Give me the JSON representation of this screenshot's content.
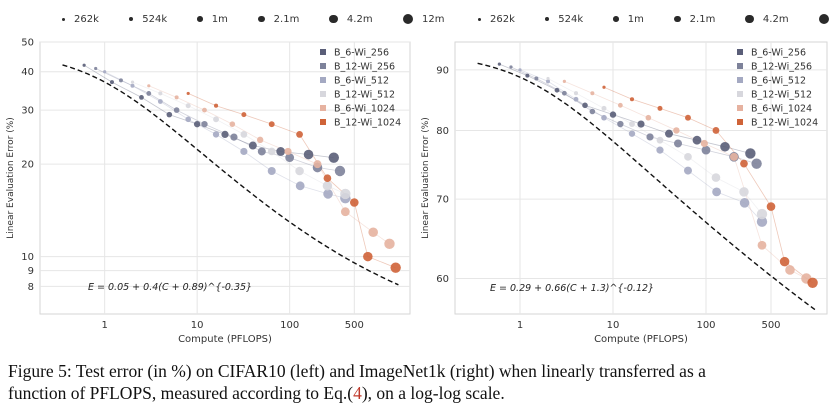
{
  "size_legend": [
    {
      "label": "262k",
      "r": 1.5
    },
    {
      "label": "524k",
      "r": 2.2
    },
    {
      "label": "1m",
      "r": 2.8
    },
    {
      "label": "2.1m",
      "r": 3.4
    },
    {
      "label": "4.2m",
      "r": 4.3
    },
    {
      "label": "12m",
      "r": 5.2
    }
  ],
  "series_legend": [
    {
      "name": "B_6-Wi_256",
      "color": "#5a5e78"
    },
    {
      "name": "B_12-Wi_256",
      "color": "#7d829a"
    },
    {
      "name": "B_6-Wi_512",
      "color": "#a4a9c2"
    },
    {
      "name": "B_12-Wi_512",
      "color": "#d7d7dd"
    },
    {
      "name": "B_6-Wi_1024",
      "color": "#e6b2a0"
    },
    {
      "name": "B_12-Wi_1024",
      "color": "#cf6338"
    }
  ],
  "chart_data": [
    {
      "type": "scatter",
      "title": "",
      "xlabel": "Compute (PFLOPS)",
      "ylabel": "Linear Evaluation Error (%)",
      "x_scale": "log",
      "y_scale": "log",
      "xlim": [
        0.2,
        2000
      ],
      "ylim": [
        6.5,
        50
      ],
      "xticks": [
        1,
        10,
        100,
        500
      ],
      "xtick_labels": [
        "1",
        "10",
        "100",
        "500"
      ],
      "yticks": [
        8,
        9,
        10,
        20,
        30,
        40,
        50
      ],
      "ytick_labels": [
        "8",
        "9",
        "10",
        "20",
        "30",
        "40",
        "50"
      ],
      "grid": true,
      "legend_position": "top-right",
      "fit_formula": "E = 0.05 + 0.4(C + 0.89)^{-0.35}",
      "fit": {
        "a": 0.05,
        "b": 0.4,
        "c": 0.89,
        "alpha": -0.35,
        "x_range": [
          0.35,
          1500
        ]
      },
      "series": [
        {
          "name": "B_6-Wi_256",
          "points": [
            [
              0.6,
              42
            ],
            [
              1.2,
              37
            ],
            [
              2.5,
              33
            ],
            [
              5,
              29
            ],
            [
              10,
              27
            ],
            [
              20,
              25
            ],
            [
              40,
              23
            ],
            [
              80,
              22
            ],
            [
              160,
              21.5
            ],
            [
              300,
              21
            ]
          ]
        },
        {
          "name": "B_12-Wi_256",
          "points": [
            [
              0.8,
              41
            ],
            [
              1.5,
              37.5
            ],
            [
              3,
              34
            ],
            [
              6,
              30
            ],
            [
              12,
              27
            ],
            [
              25,
              24.5
            ],
            [
              50,
              22
            ],
            [
              100,
              21
            ],
            [
              200,
              19.5
            ],
            [
              350,
              19
            ]
          ]
        },
        {
          "name": "B_6-Wi_512",
          "points": [
            [
              1,
              40
            ],
            [
              2,
              36
            ],
            [
              4,
              32
            ],
            [
              8,
              28
            ],
            [
              16,
              25
            ],
            [
              32,
              22
            ],
            [
              64,
              19
            ],
            [
              130,
              17
            ],
            [
              260,
              16
            ],
            [
              400,
              15.5
            ]
          ]
        },
        {
          "name": "B_12-Wi_512",
          "points": [
            [
              2,
              37
            ],
            [
              4,
              34
            ],
            [
              8,
              31
            ],
            [
              16,
              28
            ],
            [
              32,
              25
            ],
            [
              64,
              22
            ],
            [
              128,
              19
            ],
            [
              256,
              17
            ],
            [
              400,
              16
            ]
          ]
        },
        {
          "name": "B_6-Wi_1024",
          "points": [
            [
              3,
              36
            ],
            [
              6,
              33
            ],
            [
              12,
              30
            ],
            [
              24,
              27
            ],
            [
              48,
              24
            ],
            [
              96,
              22
            ],
            [
              200,
              20
            ],
            [
              400,
              14
            ],
            [
              800,
              12
            ],
            [
              1200,
              11
            ]
          ]
        },
        {
          "name": "B_12-Wi_1024",
          "points": [
            [
              8,
              34
            ],
            [
              16,
              31
            ],
            [
              32,
              29
            ],
            [
              64,
              27
            ],
            [
              128,
              25
            ],
            [
              256,
              18
            ],
            [
              500,
              15
            ],
            [
              700,
              10
            ],
            [
              1400,
              9.2
            ]
          ]
        }
      ]
    },
    {
      "type": "scatter",
      "title": "",
      "xlabel": "Compute (PFLOPS)",
      "ylabel": "Linear Evaluation Error (%)",
      "x_scale": "log",
      "y_scale": "log",
      "xlim": [
        0.2,
        2000
      ],
      "ylim": [
        56,
        95
      ],
      "xticks": [
        1,
        10,
        100,
        500
      ],
      "xtick_labels": [
        "1",
        "10",
        "100",
        "500"
      ],
      "yticks": [
        60,
        70,
        80,
        90
      ],
      "ytick_labels": [
        "60",
        "70",
        "80",
        "90"
      ],
      "grid": true,
      "legend_position": "top-right",
      "fit_formula": "E = 0.29 + 0.66(C + 1.3)^{-0.12}",
      "fit": {
        "a": 0.29,
        "b": 0.66,
        "c": 1.3,
        "alpha": -0.12,
        "x_range": [
          0.35,
          1500
        ]
      },
      "series": [
        {
          "name": "B_6-Wi_256",
          "points": [
            [
              0.6,
              91
            ],
            [
              1.2,
              89
            ],
            [
              2.5,
              86.5
            ],
            [
              5,
              84
            ],
            [
              10,
              82.5
            ],
            [
              20,
              81
            ],
            [
              40,
              79.5
            ],
            [
              80,
              78.5
            ],
            [
              160,
              77.5
            ],
            [
              300,
              76.5
            ]
          ]
        },
        {
          "name": "B_12-Wi_256",
          "points": [
            [
              0.8,
              90.5
            ],
            [
              1.5,
              88.5
            ],
            [
              3,
              86
            ],
            [
              6,
              83
            ],
            [
              12,
              81
            ],
            [
              25,
              79
            ],
            [
              50,
              78
            ],
            [
              100,
              77
            ],
            [
              200,
              76
            ],
            [
              350,
              75
            ]
          ]
        },
        {
          "name": "B_6-Wi_512",
          "points": [
            [
              1,
              90
            ],
            [
              2,
              88
            ],
            [
              4,
              85
            ],
            [
              8,
              82
            ],
            [
              16,
              79.5
            ],
            [
              32,
              77
            ],
            [
              64,
              74
            ],
            [
              130,
              71
            ],
            [
              260,
              69.5
            ],
            [
              400,
              67
            ]
          ]
        },
        {
          "name": "B_12-Wi_512",
          "points": [
            [
              2,
              88.5
            ],
            [
              4,
              86
            ],
            [
              8,
              83.5
            ],
            [
              16,
              81
            ],
            [
              32,
              78.5
            ],
            [
              64,
              76
            ],
            [
              128,
              73
            ],
            [
              256,
              71
            ],
            [
              400,
              68
            ]
          ]
        },
        {
          "name": "B_6-Wi_1024",
          "points": [
            [
              3,
              88
            ],
            [
              6,
              86
            ],
            [
              12,
              84
            ],
            [
              24,
              82
            ],
            [
              48,
              80
            ],
            [
              96,
              78
            ],
            [
              200,
              76
            ],
            [
              400,
              64
            ],
            [
              800,
              61
            ],
            [
              1200,
              60
            ]
          ]
        },
        {
          "name": "B_12-Wi_1024",
          "points": [
            [
              8,
              87
            ],
            [
              16,
              85
            ],
            [
              32,
              83.5
            ],
            [
              64,
              82
            ],
            [
              128,
              80
            ],
            [
              256,
              75
            ],
            [
              500,
              69
            ],
            [
              700,
              62
            ],
            [
              1400,
              59.5
            ]
          ]
        }
      ]
    }
  ],
  "caption": {
    "line1": "Figure 5: Test error (in %) on CIFAR10 (left) and ImageNet1k (right) when linearly transferred as a",
    "line2_before": "function of PFLOPS, measured according to Eq.(",
    "line2_ref": "4",
    "line2_after": "), on a log-log scale."
  }
}
